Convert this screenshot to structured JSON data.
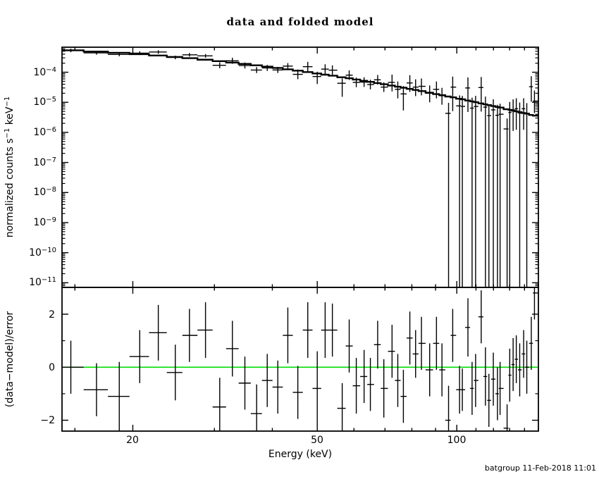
{
  "title": "data and folded model",
  "footer": {
    "timestamp": "batgroup 11-Feb-2018 11:01"
  },
  "colors": {
    "foreground": "#000000",
    "background": "#ffffff",
    "zero_line": "#00dd00"
  },
  "axes": {
    "x_label": "Energy (keV)",
    "top_y_label_parts": [
      "normalized counts s",
      "−1",
      " keV",
      "−1"
    ],
    "bottom_y_label": "(data−model)/error",
    "x_ticks_major": [
      {
        "value": 20,
        "label": "20"
      },
      {
        "value": 50,
        "label": "50"
      },
      {
        "value": 100,
        "label": "100"
      }
    ],
    "x_ticks_minor": [
      15,
      30,
      40,
      60,
      70,
      80,
      90,
      110,
      120,
      130,
      140,
      150
    ],
    "top_y_ticks": [
      {
        "value": 0.0001,
        "base": "10",
        "exp": "−4"
      },
      {
        "value": 1e-05,
        "base": "10",
        "exp": "−5"
      },
      {
        "value": 1e-06,
        "base": "10",
        "exp": "−6"
      },
      {
        "value": 1e-07,
        "base": "10",
        "exp": "−7"
      },
      {
        "value": 1e-08,
        "base": "10",
        "exp": "−8"
      },
      {
        "value": 1e-09,
        "base": "10",
        "exp": "−9"
      },
      {
        "value": 1e-10,
        "base": "10",
        "exp": "−10"
      },
      {
        "value": 1e-11,
        "base": "10",
        "exp": "−11"
      }
    ],
    "bottom_y_ticks_major": [
      {
        "value": 2,
        "label": "2"
      },
      {
        "value": 0,
        "label": "0"
      },
      {
        "value": -2,
        "label": "−2"
      }
    ],
    "bottom_y_ticks_minor": [
      -1,
      1,
      3
    ]
  },
  "chart_data": [
    {
      "type": "scatter",
      "name": "spectrum-panel",
      "title": "data and folded model",
      "xlabel": "Energy (keV)",
      "ylabel": "normalized counts s^-1 keV^-1",
      "xscale": "log",
      "yscale": "log",
      "xlim": [
        14.07,
        150
      ],
      "ylim": [
        7e-12,
        0.00068
      ],
      "grid": false,
      "x": [
        14.7,
        16.7,
        18.7,
        20.7,
        22.7,
        24.7,
        26.5,
        28.7,
        30.8,
        32.8,
        34.9,
        37.0,
        39.0,
        41.1,
        43.2,
        45.4,
        47.7,
        50.0,
        52.0,
        53.9,
        56.6,
        58.6,
        60.7,
        63.1,
        65.1,
        67.5,
        69.6,
        72.5,
        74.6,
        76.7,
        79.2,
        81.5,
        83.9,
        87.4,
        90.4,
        92.9,
        96.0,
        98.0,
        101.4,
        102.8,
        105.7,
        107.9,
        109.8,
        112.9,
        115.3,
        117.3,
        119.9,
        122.4,
        124.0,
        128.4,
        130.1,
        132.3,
        134.4,
        136.7,
        139.4,
        141.6,
        144.8,
        147.1
      ],
      "series": [
        {
          "name": "data",
          "marker": "cross-with-errors",
          "values": [
            0.00053,
            0.00044,
            0.00039,
            0.00043,
            0.00047,
            0.00031,
            0.00038,
            0.00035,
            0.00017,
            0.00024,
            0.000167,
            0.000118,
            0.000139,
            0.000119,
            0.00016,
            8.5e-05,
            0.000153,
            7.2e-05,
            0.000127,
            0.000117,
            4.3e-05,
            8e-05,
            4.6e-05,
            4.7e-05,
            3.9e-05,
            5.6e-05,
            3.2e-05,
            4.6e-05,
            2.7e-05,
            1.9e-05,
            4.4e-05,
            3.2e-05,
            3.4e-05,
            2e-05,
            2.7e-05,
            1.66e-05,
            4.3e-06,
            3.2e-05,
            7.6e-06,
            7.3e-06,
            3e-05,
            6.4e-06,
            7.3e-06,
            3.1e-05,
            6.9e-06,
            3.6e-06,
            5.6e-06,
            3.7e-06,
            4e-06,
            1.3e-06,
            4.6e-06,
            5.6e-06,
            6.1e-06,
            4.4e-06,
            6.1e-06,
            4.2e-06,
            3.3e-05,
            1.1e-05
          ],
          "err_up_dec": [
            0.06,
            0.06,
            0.06,
            0.06,
            0.06,
            0.06,
            0.06,
            0.06,
            0.1,
            0.1,
            0.1,
            0.1,
            0.1,
            0.1,
            0.1,
            0.16,
            0.16,
            0.16,
            0.16,
            0.16,
            0.16,
            0.16,
            0.16,
            0.16,
            0.16,
            0.16,
            0.16,
            0.26,
            0.26,
            0.26,
            0.26,
            0.26,
            0.26,
            0.26,
            0.26,
            0.26,
            0.35,
            0.35,
            0.35,
            0.35,
            0.35,
            0.35,
            0.35,
            0.35,
            0.35,
            0.35,
            0.35,
            0.35,
            0.35,
            0.35,
            0.35,
            0.35,
            0.35,
            0.35,
            0.35,
            0.35,
            0.35,
            0.35
          ],
          "err_dn_dec": [
            0.06,
            0.06,
            0.06,
            0.06,
            0.06,
            0.06,
            0.06,
            0.06,
            0.1,
            0.1,
            0.1,
            0.1,
            0.1,
            0.1,
            0.1,
            0.16,
            0.16,
            0.25,
            0.16,
            0.16,
            0.45,
            0.16,
            0.16,
            0.16,
            0.16,
            0.16,
            0.16,
            0.3,
            0.3,
            0.55,
            0.3,
            0.3,
            0.3,
            0.3,
            0.3,
            0.3,
            -1,
            0.8,
            -1,
            -1,
            0.8,
            -1,
            -1,
            0.8,
            -1,
            -1,
            -1,
            -1,
            -1,
            -1,
            -1,
            0.7,
            0.7,
            -1,
            0.7,
            -1,
            0.5,
            0.4
          ]
        },
        {
          "name": "folded model",
          "style": "step-line",
          "values": [
            0.000534,
            0.000488,
            0.000443,
            0.000399,
            0.000359,
            0.000323,
            0.000293,
            0.000261,
            0.000234,
            0.00021,
            0.000189,
            0.00017,
            0.000154,
            0.000139,
            0.000125,
            0.000113,
            0.000101,
            9.1e-05,
            8.3e-05,
            7.7e-05,
            6.8e-05,
            6.3e-05,
            5.7e-05,
            5.2e-05,
            4.8e-05,
            4.35e-05,
            4e-05,
            3.6e-05,
            3.3e-05,
            3.06e-05,
            2.79e-05,
            2.57e-05,
            2.36e-05,
            2.09e-05,
            1.88e-05,
            1.73e-05,
            1.56e-05,
            1.46e-05,
            1.31e-05,
            1.26e-05,
            1.15e-05,
            1.07e-05,
            1.01e-05,
            9.2e-06,
            8.6e-06,
            8.1e-06,
            7.5e-06,
            7e-06,
            6.7e-06,
            5.9e-06,
            5.6e-06,
            5.3e-06,
            5e-06,
            4.7e-06,
            4.4e-06,
            4.2e-06,
            3.8e-06,
            3.6e-06
          ]
        }
      ]
    },
    {
      "type": "scatter",
      "name": "residuals-panel",
      "ylabel": "(data-model)/error",
      "xscale": "log",
      "xlim": [
        14.07,
        150
      ],
      "ylim": [
        -2.41,
        3.01
      ],
      "zero_line": 0,
      "x": [
        14.7,
        16.7,
        18.7,
        20.7,
        22.7,
        24.7,
        26.5,
        28.7,
        30.8,
        32.8,
        34.9,
        37.0,
        39.0,
        41.1,
        43.2,
        45.4,
        47.7,
        50.0,
        52.0,
        53.9,
        56.6,
        58.6,
        60.7,
        63.1,
        65.1,
        67.5,
        69.6,
        72.5,
        74.6,
        76.7,
        79.2,
        81.5,
        83.9,
        87.4,
        90.4,
        92.9,
        96.0,
        98.0,
        101.4,
        102.8,
        105.7,
        107.9,
        109.8,
        112.9,
        115.3,
        117.3,
        119.9,
        122.4,
        124.0,
        128.4,
        130.1,
        132.3,
        134.4,
        136.7,
        139.4,
        141.6,
        144.8,
        147.1
      ],
      "series": [
        {
          "name": "(data-model)/error",
          "marker": "cross-with-errors",
          "values": [
            0.0,
            -0.85,
            -1.1,
            0.4,
            1.3,
            -0.2,
            1.2,
            1.4,
            -1.5,
            0.7,
            -0.6,
            -1.75,
            -0.5,
            -0.75,
            1.2,
            -0.95,
            1.4,
            -0.8,
            1.4,
            1.4,
            -1.55,
            0.8,
            -0.7,
            -0.35,
            -0.65,
            0.85,
            -0.8,
            0.6,
            -0.5,
            -1.1,
            1.1,
            0.5,
            0.9,
            -0.1,
            0.9,
            -0.1,
            -2.0,
            1.2,
            -0.85,
            -0.85,
            1.5,
            -0.8,
            -0.5,
            1.9,
            -0.35,
            -1.25,
            -0.45,
            -1.0,
            -0.8,
            -2.3,
            -0.3,
            0.1,
            0.3,
            -0.1,
            0.5,
            0.0,
            0.9,
            2.8
          ],
          "errors": [
            1.0,
            1.0,
            1.3,
            1.0,
            1.05,
            1.05,
            1.0,
            1.05,
            1.1,
            1.05,
            1.0,
            1.1,
            1.0,
            1.0,
            1.05,
            1.0,
            1.05,
            1.4,
            1.05,
            1.0,
            0.95,
            1.0,
            1.05,
            1.0,
            1.0,
            0.9,
            1.1,
            1.0,
            1.0,
            1.0,
            1.0,
            0.9,
            1.0,
            1.0,
            1.0,
            1.0,
            1.3,
            1.0,
            0.9,
            0.8,
            1.1,
            1.0,
            1.0,
            1.0,
            1.1,
            1.0,
            1.0,
            1.0,
            1.0,
            0.9,
            1.0,
            1.0,
            0.9,
            1.0,
            0.9,
            1.0,
            1.0,
            1.0
          ]
        }
      ]
    }
  ]
}
